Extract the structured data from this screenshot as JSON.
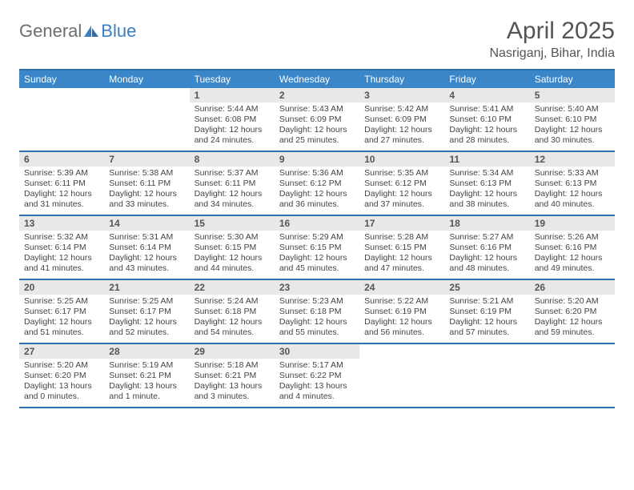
{
  "logo": {
    "text1": "General",
    "text2": "Blue"
  },
  "title": "April 2025",
  "location": "Nasriganj, Bihar, India",
  "colors": {
    "header_bg": "#3a86c8",
    "border": "#2f6fa8",
    "daynum_bg": "#e8e8e8",
    "logo_gray": "#6d6d6d",
    "logo_blue": "#3a7fc2"
  },
  "days_of_week": [
    "Sunday",
    "Monday",
    "Tuesday",
    "Wednesday",
    "Thursday",
    "Friday",
    "Saturday"
  ],
  "leading_empty": 2,
  "days": [
    {
      "n": 1,
      "sr": "5:44 AM",
      "ss": "6:08 PM",
      "dl": "12 hours and 24 minutes."
    },
    {
      "n": 2,
      "sr": "5:43 AM",
      "ss": "6:09 PM",
      "dl": "12 hours and 25 minutes."
    },
    {
      "n": 3,
      "sr": "5:42 AM",
      "ss": "6:09 PM",
      "dl": "12 hours and 27 minutes."
    },
    {
      "n": 4,
      "sr": "5:41 AM",
      "ss": "6:10 PM",
      "dl": "12 hours and 28 minutes."
    },
    {
      "n": 5,
      "sr": "5:40 AM",
      "ss": "6:10 PM",
      "dl": "12 hours and 30 minutes."
    },
    {
      "n": 6,
      "sr": "5:39 AM",
      "ss": "6:11 PM",
      "dl": "12 hours and 31 minutes."
    },
    {
      "n": 7,
      "sr": "5:38 AM",
      "ss": "6:11 PM",
      "dl": "12 hours and 33 minutes."
    },
    {
      "n": 8,
      "sr": "5:37 AM",
      "ss": "6:11 PM",
      "dl": "12 hours and 34 minutes."
    },
    {
      "n": 9,
      "sr": "5:36 AM",
      "ss": "6:12 PM",
      "dl": "12 hours and 36 minutes."
    },
    {
      "n": 10,
      "sr": "5:35 AM",
      "ss": "6:12 PM",
      "dl": "12 hours and 37 minutes."
    },
    {
      "n": 11,
      "sr": "5:34 AM",
      "ss": "6:13 PM",
      "dl": "12 hours and 38 minutes."
    },
    {
      "n": 12,
      "sr": "5:33 AM",
      "ss": "6:13 PM",
      "dl": "12 hours and 40 minutes."
    },
    {
      "n": 13,
      "sr": "5:32 AM",
      "ss": "6:14 PM",
      "dl": "12 hours and 41 minutes."
    },
    {
      "n": 14,
      "sr": "5:31 AM",
      "ss": "6:14 PM",
      "dl": "12 hours and 43 minutes."
    },
    {
      "n": 15,
      "sr": "5:30 AM",
      "ss": "6:15 PM",
      "dl": "12 hours and 44 minutes."
    },
    {
      "n": 16,
      "sr": "5:29 AM",
      "ss": "6:15 PM",
      "dl": "12 hours and 45 minutes."
    },
    {
      "n": 17,
      "sr": "5:28 AM",
      "ss": "6:15 PM",
      "dl": "12 hours and 47 minutes."
    },
    {
      "n": 18,
      "sr": "5:27 AM",
      "ss": "6:16 PM",
      "dl": "12 hours and 48 minutes."
    },
    {
      "n": 19,
      "sr": "5:26 AM",
      "ss": "6:16 PM",
      "dl": "12 hours and 49 minutes."
    },
    {
      "n": 20,
      "sr": "5:25 AM",
      "ss": "6:17 PM",
      "dl": "12 hours and 51 minutes."
    },
    {
      "n": 21,
      "sr": "5:25 AM",
      "ss": "6:17 PM",
      "dl": "12 hours and 52 minutes."
    },
    {
      "n": 22,
      "sr": "5:24 AM",
      "ss": "6:18 PM",
      "dl": "12 hours and 54 minutes."
    },
    {
      "n": 23,
      "sr": "5:23 AM",
      "ss": "6:18 PM",
      "dl": "12 hours and 55 minutes."
    },
    {
      "n": 24,
      "sr": "5:22 AM",
      "ss": "6:19 PM",
      "dl": "12 hours and 56 minutes."
    },
    {
      "n": 25,
      "sr": "5:21 AM",
      "ss": "6:19 PM",
      "dl": "12 hours and 57 minutes."
    },
    {
      "n": 26,
      "sr": "5:20 AM",
      "ss": "6:20 PM",
      "dl": "12 hours and 59 minutes."
    },
    {
      "n": 27,
      "sr": "5:20 AM",
      "ss": "6:20 PM",
      "dl": "13 hours and 0 minutes."
    },
    {
      "n": 28,
      "sr": "5:19 AM",
      "ss": "6:21 PM",
      "dl": "13 hours and 1 minute."
    },
    {
      "n": 29,
      "sr": "5:18 AM",
      "ss": "6:21 PM",
      "dl": "13 hours and 3 minutes."
    },
    {
      "n": 30,
      "sr": "5:17 AM",
      "ss": "6:22 PM",
      "dl": "13 hours and 4 minutes."
    }
  ],
  "labels": {
    "sunrise": "Sunrise:",
    "sunset": "Sunset:",
    "daylight": "Daylight:"
  }
}
